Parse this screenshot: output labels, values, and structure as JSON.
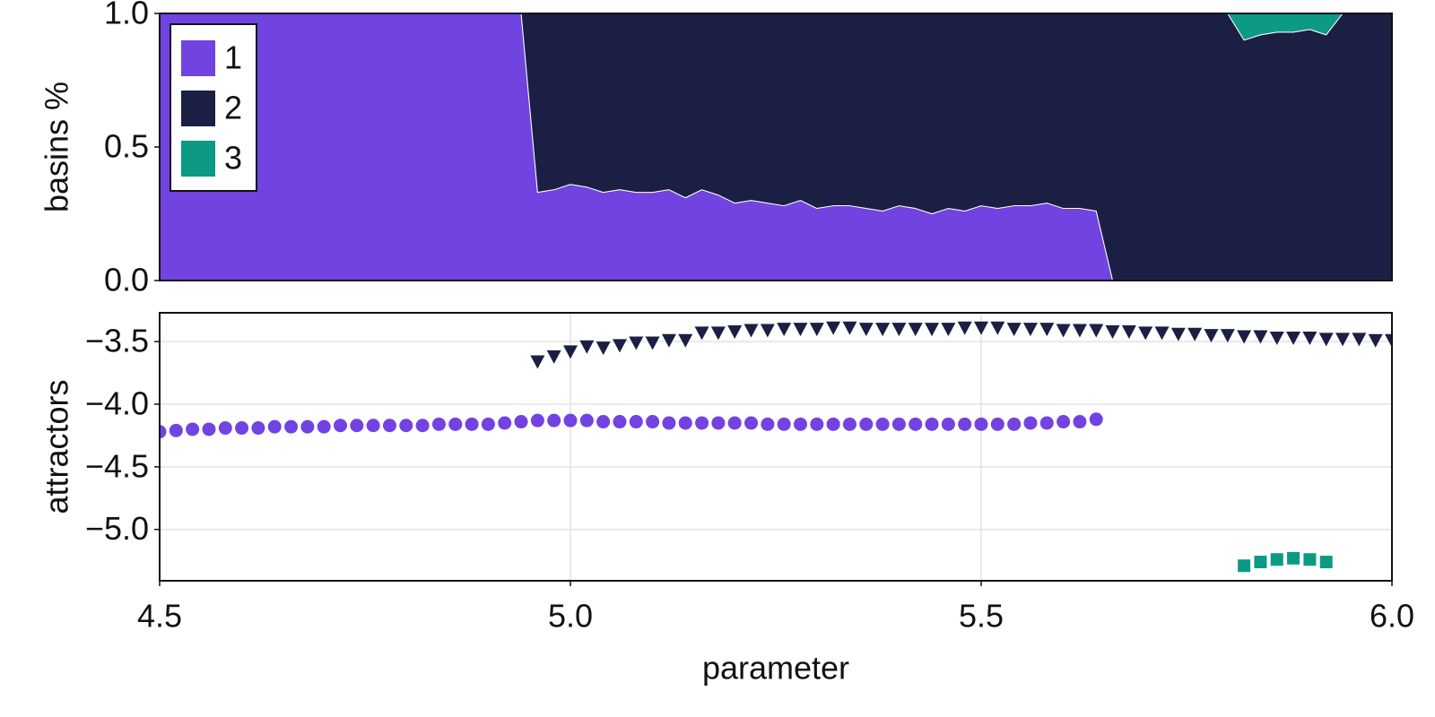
{
  "chart_data": [
    {
      "type": "area",
      "stacked": true,
      "ylabel": "basins %",
      "legend": "upper left",
      "x": [
        4.5,
        4.52,
        4.54,
        4.56,
        4.58,
        4.6,
        4.62,
        4.64,
        4.66,
        4.68,
        4.7,
        4.72,
        4.74,
        4.76,
        4.78,
        4.8,
        4.82,
        4.84,
        4.86,
        4.88,
        4.9,
        4.92,
        4.94,
        4.96,
        4.98,
        5.0,
        5.02,
        5.04,
        5.06,
        5.08,
        5.1,
        5.12,
        5.14,
        5.16,
        5.18,
        5.2,
        5.22,
        5.24,
        5.26,
        5.28,
        5.3,
        5.32,
        5.34,
        5.36,
        5.38,
        5.4,
        5.42,
        5.44,
        5.46,
        5.48,
        5.5,
        5.52,
        5.54,
        5.56,
        5.58,
        5.6,
        5.62,
        5.64,
        5.66,
        5.68,
        5.7,
        5.72,
        5.74,
        5.76,
        5.78,
        5.8,
        5.82,
        5.84,
        5.86,
        5.88,
        5.9,
        5.92,
        5.94,
        5.96,
        5.98,
        6.0
      ],
      "xlim": [
        4.5,
        6.0
      ],
      "ylim": [
        0,
        1
      ],
      "yticks": [
        {
          "value": 0,
          "label": "0.0"
        },
        {
          "value": 0.5,
          "label": "0.5"
        },
        {
          "value": 1,
          "label": "1.0"
        }
      ],
      "series": [
        {
          "name": "1",
          "color": "#7143e0",
          "values": [
            1,
            1,
            1,
            1,
            1,
            1,
            1,
            1,
            1,
            1,
            1,
            1,
            1,
            1,
            1,
            1,
            1,
            1,
            1,
            1,
            1,
            1,
            1,
            0.33,
            0.34,
            0.36,
            0.35,
            0.33,
            0.34,
            0.33,
            0.33,
            0.34,
            0.31,
            0.34,
            0.32,
            0.29,
            0.3,
            0.29,
            0.28,
            0.3,
            0.27,
            0.28,
            0.28,
            0.27,
            0.26,
            0.28,
            0.27,
            0.25,
            0.27,
            0.26,
            0.28,
            0.27,
            0.28,
            0.28,
            0.29,
            0.27,
            0.27,
            0.26,
            0,
            0,
            0,
            0,
            0,
            0,
            0,
            0,
            0,
            0,
            0,
            0,
            0,
            0,
            0,
            0,
            0,
            0
          ]
        },
        {
          "name": "2",
          "color": "#1b1f44",
          "values": [
            0,
            0,
            0,
            0,
            0,
            0,
            0,
            0,
            0,
            0,
            0,
            0,
            0,
            0,
            0,
            0,
            0,
            0,
            0,
            0,
            0,
            0,
            0,
            0.67,
            0.66,
            0.64,
            0.65,
            0.67,
            0.66,
            0.67,
            0.67,
            0.66,
            0.69,
            0.66,
            0.68,
            0.71,
            0.7,
            0.71,
            0.72,
            0.7,
            0.73,
            0.72,
            0.72,
            0.73,
            0.74,
            0.72,
            0.73,
            0.75,
            0.73,
            0.74,
            0.72,
            0.73,
            0.72,
            0.72,
            0.71,
            0.73,
            0.73,
            0.74,
            1,
            1,
            1,
            1,
            1,
            1,
            1,
            1,
            0.9,
            0.92,
            0.93,
            0.93,
            0.94,
            0.92,
            1,
            1,
            1,
            1
          ]
        },
        {
          "name": "3",
          "color": "#0c9a84",
          "values": [
            0,
            0,
            0,
            0,
            0,
            0,
            0,
            0,
            0,
            0,
            0,
            0,
            0,
            0,
            0,
            0,
            0,
            0,
            0,
            0,
            0,
            0,
            0,
            0,
            0,
            0,
            0,
            0,
            0,
            0,
            0,
            0,
            0,
            0,
            0,
            0,
            0,
            0,
            0,
            0,
            0,
            0,
            0,
            0,
            0,
            0,
            0,
            0,
            0,
            0,
            0,
            0,
            0,
            0,
            0,
            0,
            0,
            0,
            0,
            0,
            0,
            0,
            0,
            0,
            0,
            0,
            0.1,
            0.08,
            0.07,
            0.07,
            0.06,
            0.08,
            0,
            0,
            0,
            0
          ]
        }
      ]
    },
    {
      "type": "scatter",
      "ylabel": "attractors",
      "xlabel": "parameter",
      "grid": true,
      "x": [
        4.5,
        4.52,
        4.54,
        4.56,
        4.58,
        4.6,
        4.62,
        4.64,
        4.66,
        4.68,
        4.7,
        4.72,
        4.74,
        4.76,
        4.78,
        4.8,
        4.82,
        4.84,
        4.86,
        4.88,
        4.9,
        4.92,
        4.94,
        4.96,
        4.98,
        5.0,
        5.02,
        5.04,
        5.06,
        5.08,
        5.1,
        5.12,
        5.14,
        5.16,
        5.18,
        5.2,
        5.22,
        5.24,
        5.26,
        5.28,
        5.3,
        5.32,
        5.34,
        5.36,
        5.38,
        5.4,
        5.42,
        5.44,
        5.46,
        5.48,
        5.5,
        5.52,
        5.54,
        5.56,
        5.58,
        5.6,
        5.62,
        5.64,
        5.66,
        5.68,
        5.7,
        5.72,
        5.74,
        5.76,
        5.78,
        5.8,
        5.82,
        5.84,
        5.86,
        5.88,
        5.9,
        5.92,
        5.94,
        5.96,
        5.98,
        6.0
      ],
      "xlim": [
        4.5,
        6.0
      ],
      "xticks": [
        4.5,
        {
          "value": 5,
          "label": "5.0"
        },
        5.5,
        {
          "value": 6,
          "label": "6.0"
        }
      ],
      "ylim": [
        -5.41,
        -3.27
      ],
      "yticks": [
        {
          "value": -5,
          "label": "−5.0"
        },
        {
          "value": -4.5,
          "label": "−4.5"
        },
        {
          "value": -4,
          "label": "−4.0"
        },
        {
          "value": -3.5,
          "label": "−3.5"
        }
      ],
      "series": [
        {
          "color": "#7143e0",
          "marker": "circle",
          "values": [
            -4.22,
            -4.21,
            -4.2,
            -4.2,
            -4.19,
            -4.19,
            -4.19,
            -4.18,
            -4.18,
            -4.18,
            -4.18,
            -4.17,
            -4.17,
            -4.17,
            -4.17,
            -4.17,
            -4.17,
            -4.16,
            -4.16,
            -4.16,
            -4.16,
            -4.15,
            -4.14,
            -4.13,
            -4.13,
            -4.13,
            -4.13,
            -4.14,
            -4.14,
            -4.14,
            -4.14,
            -4.15,
            -4.15,
            -4.15,
            -4.15,
            -4.15,
            -4.15,
            -4.16,
            -4.16,
            -4.16,
            -4.16,
            -4.16,
            -4.16,
            -4.16,
            -4.16,
            -4.16,
            -4.16,
            -4.16,
            -4.16,
            -4.16,
            -4.16,
            -4.16,
            -4.16,
            -4.15,
            -4.15,
            -4.14,
            -4.14,
            -4.12,
            null,
            null,
            null,
            null,
            null,
            null,
            null,
            null,
            null,
            null,
            null,
            null,
            null,
            null,
            null,
            null,
            null,
            null
          ]
        },
        {
          "color": "#1b1f44",
          "marker": "triangle-down",
          "values": [
            null,
            null,
            null,
            null,
            null,
            null,
            null,
            null,
            null,
            null,
            null,
            null,
            null,
            null,
            null,
            null,
            null,
            null,
            null,
            null,
            null,
            null,
            null,
            -3.66,
            -3.62,
            -3.58,
            -3.54,
            -3.55,
            -3.53,
            -3.51,
            -3.51,
            -3.49,
            -3.49,
            -3.43,
            -3.43,
            -3.42,
            -3.41,
            -3.41,
            -3.4,
            -3.4,
            -3.4,
            -3.39,
            -3.39,
            -3.4,
            -3.4,
            -3.4,
            -3.4,
            -3.4,
            -3.4,
            -3.39,
            -3.39,
            -3.39,
            -3.4,
            -3.4,
            -3.4,
            -3.41,
            -3.41,
            -3.41,
            -3.42,
            -3.42,
            -3.43,
            -3.43,
            -3.44,
            -3.44,
            -3.45,
            -3.45,
            -3.46,
            -3.46,
            -3.47,
            -3.47,
            -3.47,
            -3.48,
            -3.48,
            -3.48,
            -3.49,
            -3.49
          ]
        },
        {
          "color": "#0c9a84",
          "marker": "square",
          "values": [
            null,
            null,
            null,
            null,
            null,
            null,
            null,
            null,
            null,
            null,
            null,
            null,
            null,
            null,
            null,
            null,
            null,
            null,
            null,
            null,
            null,
            null,
            null,
            null,
            null,
            null,
            null,
            null,
            null,
            null,
            null,
            null,
            null,
            null,
            null,
            null,
            null,
            null,
            null,
            null,
            null,
            null,
            null,
            null,
            null,
            null,
            null,
            null,
            null,
            null,
            null,
            null,
            null,
            null,
            null,
            null,
            null,
            null,
            null,
            null,
            null,
            null,
            null,
            null,
            null,
            null,
            -5.29,
            -5.26,
            -5.24,
            -5.23,
            -5.24,
            -5.26,
            null,
            null,
            null,
            null
          ]
        }
      ]
    }
  ]
}
